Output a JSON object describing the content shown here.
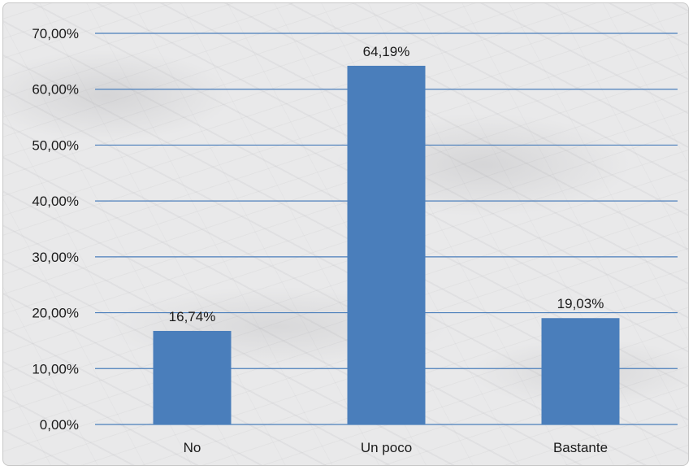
{
  "chart_data": {
    "type": "bar",
    "title": "",
    "xlabel": "",
    "ylabel": "",
    "categories": [
      "No",
      "Un poco",
      "Bastante"
    ],
    "values": [
      16.74,
      64.19,
      19.03
    ],
    "value_labels": [
      "16,74%",
      "64,19%",
      "19,03%"
    ],
    "ylim": [
      0,
      70
    ],
    "yticks": [
      0,
      10,
      20,
      30,
      40,
      50,
      60,
      70
    ],
    "ytick_labels": [
      "0,00%",
      "10,00%",
      "20,00%",
      "30,00%",
      "40,00%",
      "50,00%",
      "60,00%",
      "70,00%"
    ],
    "grid": true,
    "legend": "none",
    "bar_color": "#4a7ebb",
    "grid_color": "#4a7ebb"
  }
}
